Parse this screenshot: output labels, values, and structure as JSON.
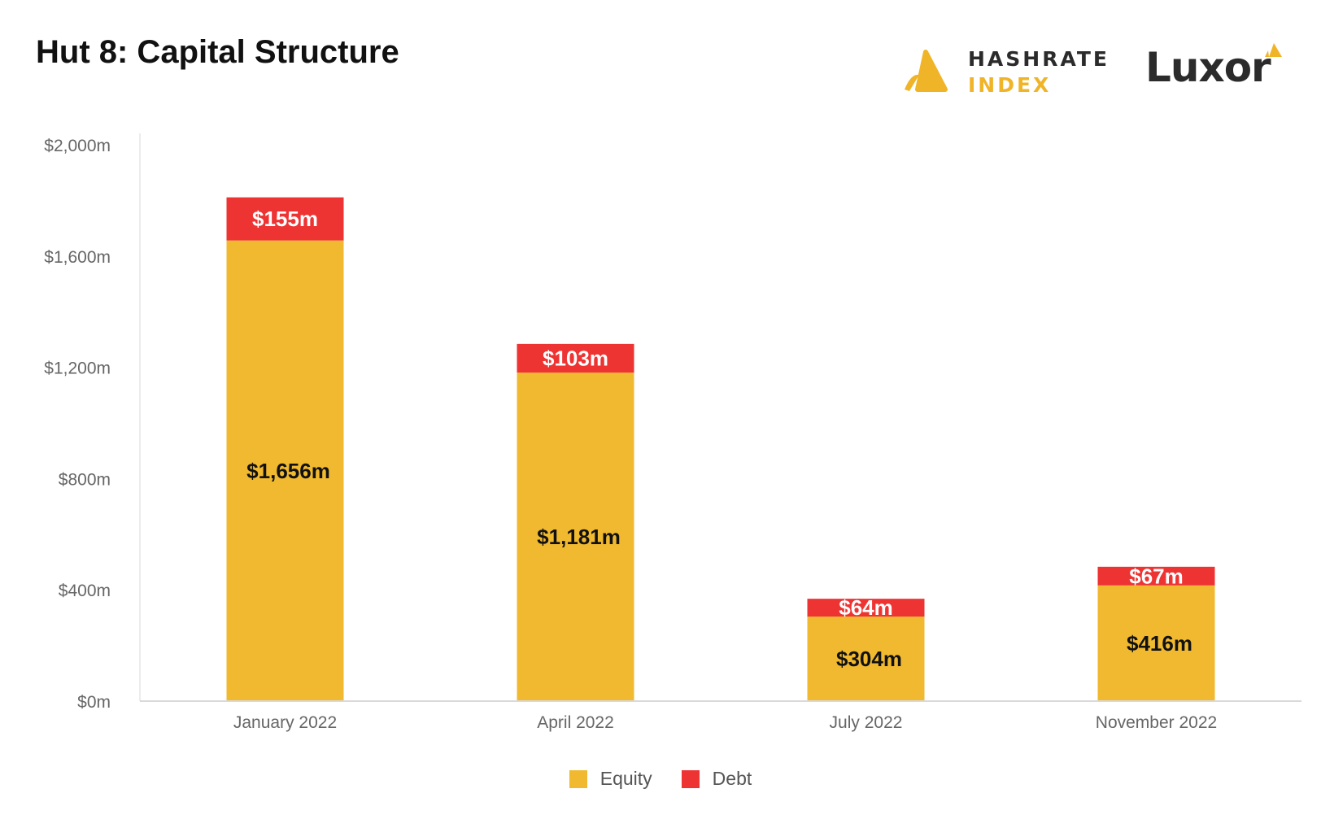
{
  "header": {
    "title": "Hut 8: Capital Structure",
    "logo_hashrate_line1": "HASHRATE",
    "logo_hashrate_line2": "INDEX",
    "logo_luxor": "Luxor"
  },
  "colors": {
    "equity": "#f0b930",
    "debt": "#ee3333",
    "axis": "#d9d9d9",
    "tick_text": "#666666",
    "equity_label": "#111111",
    "debt_label": "#ffffff"
  },
  "chart_data": {
    "type": "bar",
    "stacked": true,
    "title": "Hut 8: Capital Structure",
    "categories": [
      "January 2022",
      "April 2022",
      "July 2022",
      "November 2022"
    ],
    "series": [
      {
        "name": "Equity",
        "values": [
          1656,
          1181,
          304,
          416
        ],
        "labels": [
          "$1,656m",
          "$1,181m",
          "$304m",
          "$416m"
        ]
      },
      {
        "name": "Debt",
        "values": [
          155,
          103,
          64,
          67
        ],
        "labels": [
          "$155m",
          "$103m",
          "$64m",
          "$67m"
        ]
      }
    ],
    "ylim": [
      0,
      2000
    ],
    "yticks": [
      0,
      400,
      800,
      1200,
      1600,
      2000
    ],
    "ytick_labels": [
      "$0m",
      "$400m",
      "$800m",
      "$1,200m",
      "$1,600m",
      "$2,000m"
    ],
    "xlabel": "",
    "ylabel": "",
    "legend": "bottom-center",
    "grid": false
  }
}
